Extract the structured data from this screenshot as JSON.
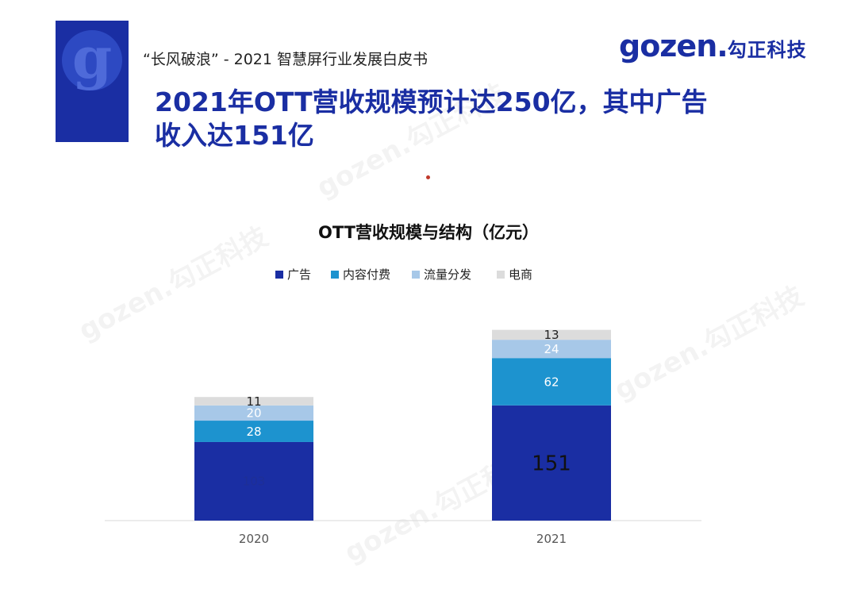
{
  "header": {
    "subtitle": "“长风破浪” - 2021 智慧屏行业发展白皮书",
    "title_line1": "2021年OTT营收规模预计达250亿，其中广告",
    "title_line2": "收入达151亿",
    "brand_latin": "gozen.",
    "brand_cn": "勾正科技",
    "logo_letter": "g",
    "watermark": "gozen.勾正科技"
  },
  "chart_data": {
    "type": "bar",
    "stacked": true,
    "title": "OTT营收规模与结构（亿元）",
    "categories": [
      "2020",
      "2021"
    ],
    "series": [
      {
        "name": "广告",
        "values": [
          103,
          151
        ],
        "color": "#1a2ea3"
      },
      {
        "name": "内容付费",
        "values": [
          28,
          62
        ],
        "color": "#1d93cf"
      },
      {
        "name": "流量分发",
        "values": [
          20,
          24
        ],
        "color": "#a7c8e8"
      },
      {
        "name": "电商",
        "values": [
          11,
          13
        ],
        "color": "#dcdcdc"
      }
    ],
    "legend_position": "top-center",
    "grid": false
  }
}
